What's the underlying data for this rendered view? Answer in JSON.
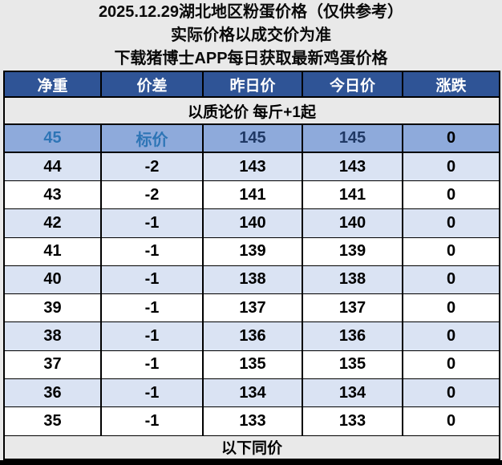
{
  "page": {
    "background": "#e9e9e9",
    "title_lines": [
      "2025.12.29湖北地区粉蛋价格（仅供参考）",
      "实际价格以成交价为准",
      "下载猪博士APP每日获取最新鸡蛋价格"
    ]
  },
  "table": {
    "headers": [
      "净重",
      "价差",
      "昨日价",
      "今日价",
      "涨跌"
    ],
    "quality_note": "以质论价 每斤+1起",
    "footer_note": "以下同价",
    "rows": [
      {
        "weight": "45",
        "diff": "标价",
        "yesterday": "145",
        "today": "145",
        "change": "0",
        "highlight": true
      },
      {
        "weight": "44",
        "diff": "-2",
        "yesterday": "143",
        "today": "143",
        "change": "0"
      },
      {
        "weight": "43",
        "diff": "-2",
        "yesterday": "141",
        "today": "141",
        "change": "0"
      },
      {
        "weight": "42",
        "diff": "-1",
        "yesterday": "140",
        "today": "140",
        "change": "0"
      },
      {
        "weight": "41",
        "diff": "-1",
        "yesterday": "139",
        "today": "139",
        "change": "0"
      },
      {
        "weight": "40",
        "diff": "-1",
        "yesterday": "138",
        "today": "138",
        "change": "0"
      },
      {
        "weight": "39",
        "diff": "-1",
        "yesterday": "137",
        "today": "137",
        "change": "0"
      },
      {
        "weight": "38",
        "diff": "-1",
        "yesterday": "136",
        "today": "136",
        "change": "0"
      },
      {
        "weight": "37",
        "diff": "-1",
        "yesterday": "135",
        "today": "135",
        "change": "0"
      },
      {
        "weight": "36",
        "diff": "-1",
        "yesterday": "134",
        "today": "134",
        "change": "0"
      },
      {
        "weight": "35",
        "diff": "-1",
        "yesterday": "133",
        "today": "133",
        "change": "0"
      }
    ],
    "colors": {
      "page_bg": "#e9e9e9",
      "header_bg": "#2f5496",
      "header_text": "#ffffff",
      "highlight_bg": "#8eaadb",
      "highlight_label": "#2e75b6",
      "highlight_value": "#1f3864",
      "alt_row_bg": "#dae3f3",
      "white_row_bg": "#ffffff",
      "note_bg": "#e9e9e9",
      "bottom_bar": "#000000"
    }
  }
}
